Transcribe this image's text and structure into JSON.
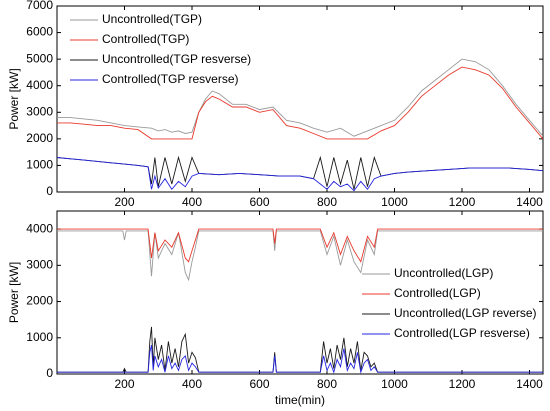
{
  "chart_data": [
    {
      "type": "line",
      "title": "",
      "xlabel": "",
      "ylabel": "Power [kW]",
      "xlim": [
        0,
        1440
      ],
      "ylim": [
        0,
        7000
      ],
      "x_ticks": [
        200,
        400,
        600,
        800,
        1000,
        1200,
        1400
      ],
      "y_ticks": [
        0,
        1000,
        2000,
        3000,
        4000,
        5000,
        6000,
        7000
      ],
      "grid": false,
      "legend_position": "top-left",
      "series": [
        {
          "name": "Uncontrolled(TGP)",
          "color": "#9a9a9a",
          "x": [
            0,
            40,
            80,
            120,
            160,
            200,
            240,
            280,
            300,
            320,
            340,
            360,
            380,
            400,
            420,
            440,
            460,
            480,
            520,
            560,
            600,
            640,
            680,
            720,
            760,
            800,
            840,
            880,
            920,
            960,
            1000,
            1040,
            1080,
            1120,
            1160,
            1200,
            1240,
            1280,
            1320,
            1360,
            1400,
            1440
          ],
          "y": [
            2800,
            2800,
            2750,
            2700,
            2600,
            2500,
            2450,
            2400,
            2300,
            2350,
            2250,
            2300,
            2200,
            2250,
            3000,
            3500,
            3800,
            3700,
            3300,
            3300,
            3100,
            3200,
            2700,
            2600,
            2400,
            2250,
            2400,
            2100,
            2300,
            2500,
            2700,
            3200,
            3800,
            4200,
            4600,
            5000,
            4900,
            4600,
            4000,
            3300,
            2700,
            2100
          ]
        },
        {
          "name": "Controlled(TGP)",
          "color": "#e8382b",
          "x": [
            0,
            40,
            80,
            120,
            160,
            200,
            240,
            280,
            300,
            320,
            340,
            360,
            380,
            400,
            420,
            440,
            460,
            480,
            520,
            560,
            600,
            640,
            680,
            720,
            760,
            800,
            840,
            880,
            920,
            960,
            1000,
            1040,
            1080,
            1120,
            1160,
            1200,
            1240,
            1280,
            1320,
            1360,
            1400,
            1440
          ],
          "y": [
            2600,
            2600,
            2550,
            2500,
            2500,
            2400,
            2350,
            2000,
            2000,
            2000,
            2000,
            2000,
            2000,
            2000,
            3000,
            3400,
            3600,
            3500,
            3200,
            3200,
            3000,
            3100,
            2500,
            2400,
            2200,
            2000,
            2000,
            2000,
            2000,
            2300,
            2500,
            3000,
            3600,
            4000,
            4400,
            4700,
            4600,
            4400,
            3900,
            3200,
            2600,
            2000
          ]
        },
        {
          "name": "Uncontrolled(TGP resverse)",
          "color": "#1a1a1a",
          "x": [
            0,
            40,
            80,
            120,
            160,
            200,
            240,
            270,
            280,
            290,
            300,
            320,
            340,
            360,
            380,
            400,
            420,
            480,
            540,
            600,
            660,
            720,
            760,
            780,
            800,
            820,
            840,
            860,
            880,
            900,
            920,
            940,
            960,
            1000,
            1040,
            1100,
            1160,
            1220,
            1280,
            1340,
            1400,
            1440
          ],
          "y": [
            1300,
            1250,
            1200,
            1150,
            1100,
            1050,
            1000,
            950,
            300,
            1300,
            200,
            1300,
            300,
            1300,
            400,
            1300,
            700,
            650,
            700,
            650,
            600,
            600,
            500,
            1300,
            200,
            1300,
            300,
            1200,
            100,
            1300,
            200,
            1300,
            600,
            700,
            750,
            800,
            850,
            900,
            900,
            900,
            850,
            800
          ]
        },
        {
          "name": "Controlled(TGP resverse)",
          "color": "#2525e0",
          "x": [
            0,
            40,
            80,
            120,
            160,
            200,
            240,
            270,
            280,
            290,
            300,
            320,
            340,
            360,
            380,
            400,
            420,
            480,
            540,
            600,
            660,
            720,
            760,
            780,
            800,
            820,
            840,
            860,
            880,
            900,
            920,
            940,
            960,
            1000,
            1040,
            1100,
            1160,
            1220,
            1280,
            1340,
            1400,
            1440
          ],
          "y": [
            1300,
            1250,
            1200,
            1150,
            1100,
            1050,
            1000,
            950,
            100,
            600,
            150,
            500,
            100,
            400,
            200,
            600,
            700,
            650,
            700,
            650,
            600,
            600,
            500,
            300,
            100,
            400,
            200,
            300,
            50,
            400,
            100,
            500,
            600,
            700,
            750,
            800,
            850,
            900,
            900,
            900,
            850,
            800
          ]
        }
      ]
    },
    {
      "type": "line",
      "title": "",
      "xlabel": "time(min)",
      "ylabel": "Power [kW]",
      "xlim": [
        0,
        1440
      ],
      "ylim": [
        0,
        4500
      ],
      "x_ticks": [
        200,
        400,
        600,
        800,
        1000,
        1200,
        1400
      ],
      "y_ticks": [
        0,
        1000,
        2000,
        3000,
        4000
      ],
      "grid": false,
      "legend_position": "right",
      "series": [
        {
          "name": "Uncontrolled(LGP)",
          "color": "#9a9a9a",
          "x": [
            0,
            195,
            200,
            205,
            270,
            280,
            290,
            300,
            320,
            340,
            360,
            380,
            390,
            400,
            410,
            420,
            640,
            645,
            650,
            655,
            780,
            800,
            820,
            840,
            860,
            880,
            900,
            920,
            940,
            950,
            1440
          ],
          "y": [
            3950,
            3950,
            3700,
            3950,
            3950,
            2700,
            3900,
            3200,
            3600,
            3300,
            3900,
            2800,
            2600,
            3100,
            3500,
            3950,
            3950,
            3400,
            3950,
            3950,
            3950,
            3300,
            3800,
            3000,
            3700,
            3100,
            2800,
            3700,
            3300,
            3950,
            3950
          ]
        },
        {
          "name": "Controlled(LGP)",
          "color": "#e8382b",
          "x": [
            0,
            270,
            280,
            290,
            300,
            320,
            340,
            360,
            380,
            390,
            400,
            410,
            420,
            640,
            645,
            650,
            655,
            780,
            800,
            820,
            840,
            860,
            880,
            900,
            920,
            940,
            950,
            1440
          ],
          "y": [
            4000,
            4000,
            3200,
            3900,
            3400,
            3700,
            3500,
            3900,
            3200,
            3100,
            3400,
            3700,
            4000,
            4000,
            3600,
            4000,
            4000,
            4000,
            3500,
            3900,
            3300,
            3800,
            3400,
            3100,
            3800,
            3500,
            4000,
            4000
          ]
        },
        {
          "name": "Uncontrolled(LGP reverse)",
          "color": "#1a1a1a",
          "x": [
            0,
            195,
            200,
            205,
            270,
            275,
            280,
            285,
            290,
            300,
            310,
            320,
            330,
            340,
            350,
            360,
            370,
            380,
            390,
            400,
            410,
            420,
            640,
            645,
            650,
            655,
            780,
            790,
            800,
            810,
            820,
            830,
            840,
            850,
            860,
            870,
            880,
            890,
            900,
            910,
            920,
            930,
            940,
            950,
            1440
          ],
          "y": [
            50,
            50,
            150,
            50,
            50,
            900,
            1300,
            200,
            1000,
            400,
            800,
            100,
            900,
            300,
            700,
            200,
            900,
            1100,
            300,
            600,
            450,
            50,
            50,
            600,
            50,
            50,
            50,
            900,
            300,
            700,
            150,
            800,
            400,
            1000,
            200,
            700,
            300,
            900,
            100,
            600,
            500,
            200,
            300,
            50,
            50
          ]
        },
        {
          "name": "Controlled(LGP resverse)",
          "color": "#2525e0",
          "x": [
            0,
            270,
            275,
            280,
            285,
            290,
            300,
            310,
            320,
            330,
            340,
            350,
            360,
            370,
            380,
            390,
            400,
            410,
            420,
            640,
            645,
            650,
            655,
            780,
            790,
            800,
            810,
            820,
            830,
            840,
            850,
            860,
            870,
            880,
            890,
            900,
            910,
            920,
            930,
            940,
            950,
            1440
          ],
          "y": [
            50,
            50,
            600,
            800,
            100,
            500,
            200,
            400,
            50,
            500,
            150,
            300,
            100,
            400,
            500,
            100,
            300,
            200,
            50,
            50,
            500,
            50,
            50,
            50,
            500,
            100,
            300,
            50,
            400,
            200,
            700,
            100,
            300,
            150,
            600,
            50,
            300,
            400,
            100,
            200,
            50,
            50
          ]
        }
      ]
    }
  ]
}
